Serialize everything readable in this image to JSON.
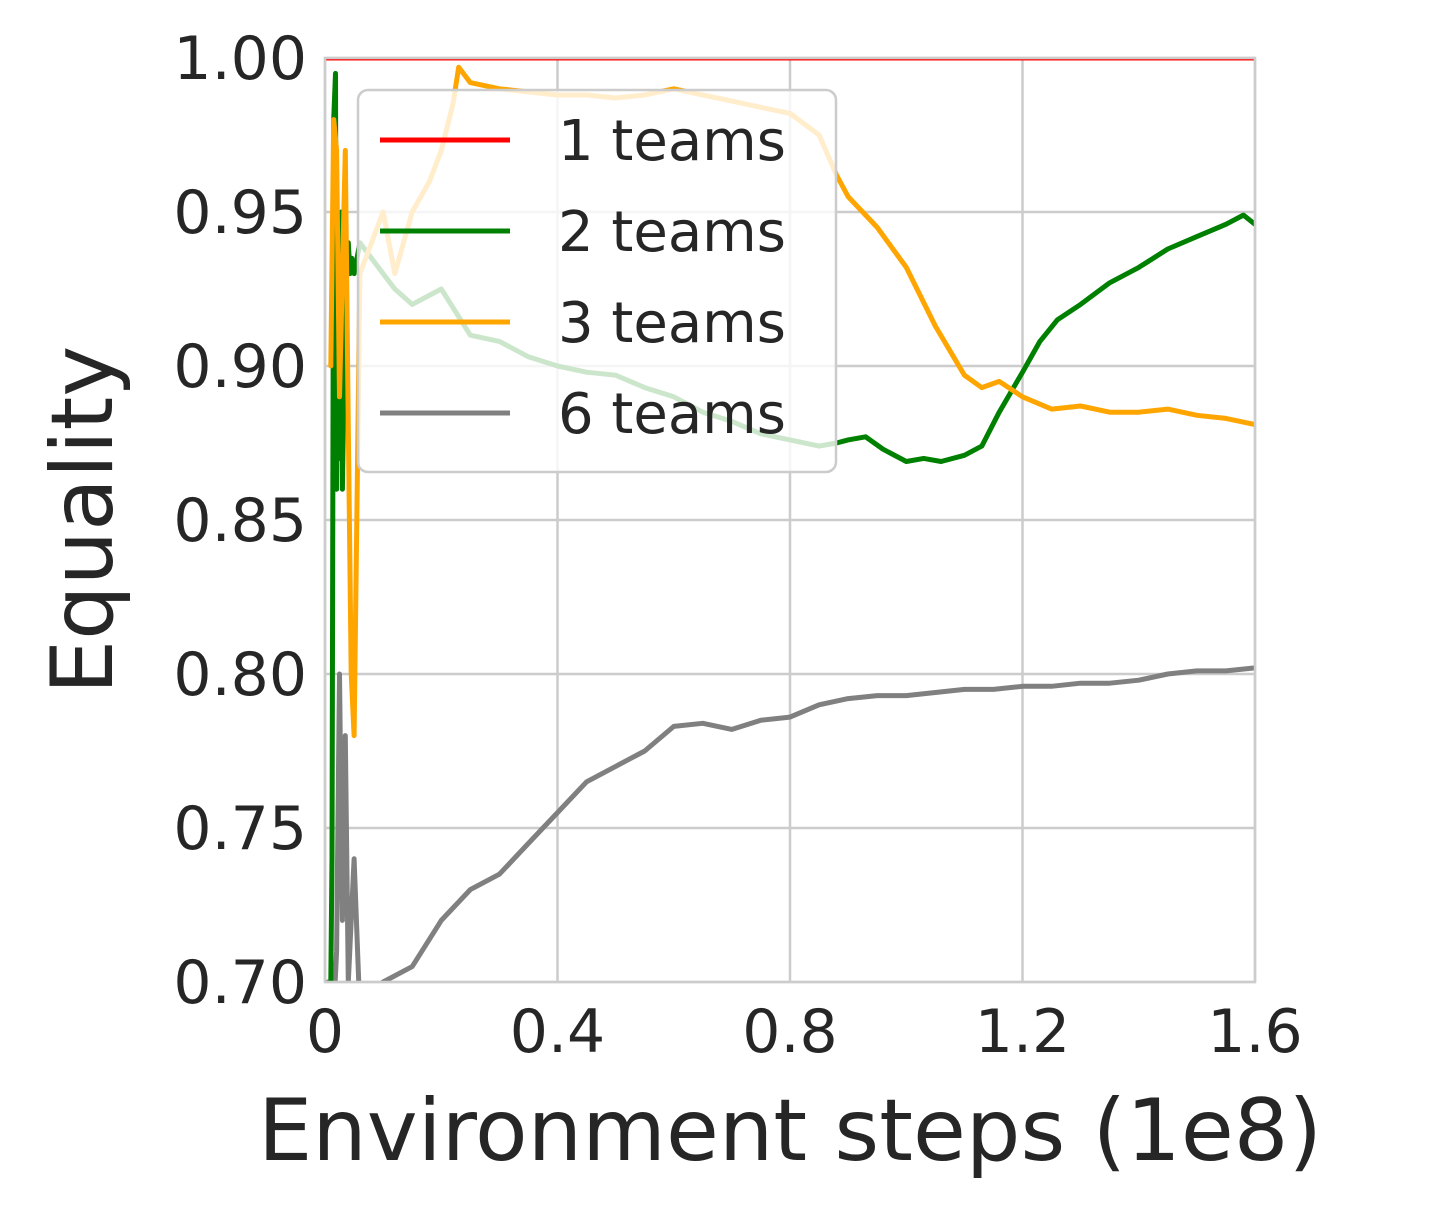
{
  "chart_data": {
    "type": "line",
    "title": "",
    "xlabel": "Environment steps (1e8)",
    "ylabel": "Equality",
    "xlim": [
      0,
      1.6
    ],
    "ylim": [
      0.7,
      1.0
    ],
    "x_ticks": [
      "0",
      "0.4",
      "0.8",
      "1.2",
      "1.6"
    ],
    "y_ticks": [
      "0.70",
      "0.75",
      "0.80",
      "0.85",
      "0.90",
      "0.95",
      "1.00"
    ],
    "x_tick_values": [
      0,
      0.4,
      0.8,
      1.2,
      1.6
    ],
    "y_tick_values": [
      0.7,
      0.75,
      0.8,
      0.85,
      0.9,
      0.95,
      1.0
    ],
    "grid": true,
    "legend_position": "upper-left",
    "series": [
      {
        "name": "1 teams",
        "color": "#ff0000",
        "x": [
          0.0,
          1.6
        ],
        "y": [
          1.0,
          1.0
        ]
      },
      {
        "name": "2 teams",
        "color": "#008000",
        "x": [
          0.01,
          0.012,
          0.015,
          0.018,
          0.02,
          0.022,
          0.025,
          0.028,
          0.03,
          0.033,
          0.036,
          0.04,
          0.043,
          0.046,
          0.05,
          0.055,
          0.06,
          0.08,
          0.1,
          0.12,
          0.15,
          0.2,
          0.25,
          0.3,
          0.35,
          0.4,
          0.45,
          0.5,
          0.55,
          0.6,
          0.65,
          0.7,
          0.75,
          0.8,
          0.85,
          0.88,
          0.9,
          0.93,
          0.96,
          1.0,
          1.03,
          1.06,
          1.1,
          1.13,
          1.16,
          1.2,
          1.23,
          1.26,
          1.3,
          1.35,
          1.4,
          1.45,
          1.5,
          1.55,
          1.58,
          1.6
        ],
        "y": [
          0.7,
          0.74,
          0.98,
          0.995,
          0.86,
          0.93,
          0.87,
          0.95,
          0.86,
          0.9,
          0.93,
          0.94,
          0.93,
          0.935,
          0.93,
          0.935,
          0.94,
          0.935,
          0.93,
          0.925,
          0.92,
          0.925,
          0.91,
          0.908,
          0.903,
          0.9,
          0.898,
          0.897,
          0.893,
          0.89,
          0.885,
          0.882,
          0.878,
          0.876,
          0.874,
          0.875,
          0.876,
          0.877,
          0.873,
          0.869,
          0.87,
          0.869,
          0.871,
          0.874,
          0.885,
          0.898,
          0.908,
          0.915,
          0.92,
          0.927,
          0.932,
          0.938,
          0.942,
          0.946,
          0.949,
          0.946
        ]
      },
      {
        "name": "3 teams",
        "color": "#ffa500",
        "x": [
          0.01,
          0.015,
          0.02,
          0.025,
          0.03,
          0.035,
          0.04,
          0.045,
          0.05,
          0.06,
          0.08,
          0.1,
          0.12,
          0.15,
          0.18,
          0.2,
          0.22,
          0.23,
          0.25,
          0.3,
          0.35,
          0.4,
          0.45,
          0.5,
          0.55,
          0.6,
          0.65,
          0.7,
          0.75,
          0.8,
          0.85,
          0.88,
          0.9,
          0.95,
          1.0,
          1.05,
          1.1,
          1.13,
          1.16,
          1.2,
          1.25,
          1.3,
          1.35,
          1.4,
          1.45,
          1.5,
          1.55,
          1.6
        ],
        "y": [
          0.9,
          0.98,
          0.97,
          0.89,
          0.93,
          0.97,
          0.88,
          0.8,
          0.78,
          0.93,
          0.94,
          0.95,
          0.93,
          0.95,
          0.96,
          0.97,
          0.985,
          0.997,
          0.992,
          0.99,
          0.989,
          0.988,
          0.988,
          0.987,
          0.988,
          0.99,
          0.988,
          0.986,
          0.984,
          0.982,
          0.975,
          0.962,
          0.955,
          0.945,
          0.932,
          0.913,
          0.897,
          0.893,
          0.895,
          0.89,
          0.886,
          0.887,
          0.885,
          0.885,
          0.886,
          0.884,
          0.883,
          0.881
        ]
      },
      {
        "name": "6 teams",
        "color": "#808080",
        "x": [
          0.005,
          0.01,
          0.015,
          0.02,
          0.025,
          0.03,
          0.035,
          0.04,
          0.045,
          0.05,
          0.06,
          0.1,
          0.15,
          0.2,
          0.25,
          0.3,
          0.35,
          0.4,
          0.45,
          0.5,
          0.55,
          0.6,
          0.65,
          0.7,
          0.75,
          0.8,
          0.85,
          0.9,
          0.95,
          1.0,
          1.05,
          1.1,
          1.15,
          1.2,
          1.25,
          1.3,
          1.35,
          1.4,
          1.45,
          1.5,
          1.55,
          1.6
        ],
        "y": [
          0.7,
          0.7,
          0.69,
          0.71,
          0.8,
          0.72,
          0.78,
          0.7,
          0.72,
          0.74,
          0.69,
          0.7,
          0.705,
          0.72,
          0.73,
          0.735,
          0.745,
          0.755,
          0.765,
          0.77,
          0.775,
          0.783,
          0.784,
          0.782,
          0.785,
          0.786,
          0.79,
          0.792,
          0.793,
          0.793,
          0.794,
          0.795,
          0.795,
          0.796,
          0.796,
          0.797,
          0.797,
          0.798,
          0.8,
          0.801,
          0.801,
          0.802
        ]
      }
    ]
  }
}
